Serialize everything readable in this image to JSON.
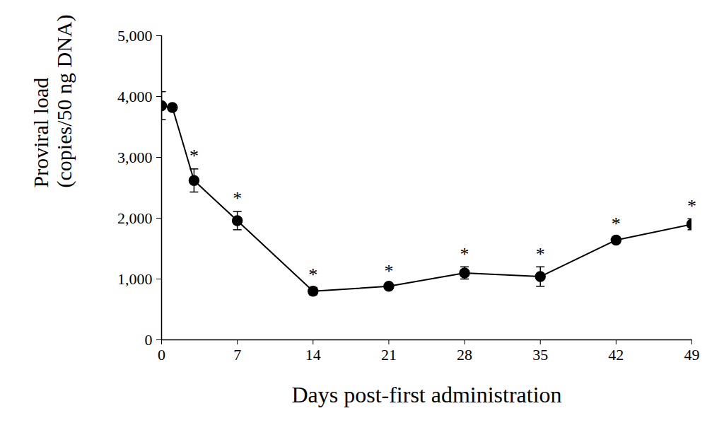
{
  "chart_data": {
    "type": "line",
    "x_label": "Days post-first administration",
    "y_label": "Proviral load\n(copies/50 ng DNA)",
    "x": [
      0,
      1,
      3,
      7,
      14,
      21,
      28,
      35,
      42,
      49
    ],
    "series": [
      {
        "name": "Proviral load",
        "color": "#000000",
        "marker": "circle",
        "line_style": "solid",
        "values": [
          3850,
          3820,
          2620,
          1960,
          800,
          880,
          1100,
          1040,
          1640,
          1900
        ],
        "error": [
          230,
          20,
          190,
          150,
          60,
          40,
          100,
          160,
          50,
          90
        ]
      }
    ],
    "annotations": [
      {
        "x": 3,
        "text": "*"
      },
      {
        "x": 7,
        "text": "*"
      },
      {
        "x": 14,
        "text": "*"
      },
      {
        "x": 21,
        "text": "*"
      },
      {
        "x": 28,
        "text": "*"
      },
      {
        "x": 35,
        "text": "*"
      },
      {
        "x": 42,
        "text": "*"
      },
      {
        "x": 49,
        "text": "*"
      }
    ],
    "xlim": [
      0,
      49
    ],
    "xticks": [
      0,
      7,
      14,
      21,
      28,
      35,
      42,
      49
    ],
    "ylim": [
      0,
      5000
    ],
    "yticks": [
      0,
      {
        "value": 1000,
        "label": "1,000"
      },
      {
        "value": 2000,
        "label": "2,000"
      },
      {
        "value": 3000,
        "label": "3,000"
      },
      {
        "value": 4000,
        "label": "4,000"
      },
      {
        "value": 5000,
        "label": "5,000"
      }
    ],
    "grid": false
  }
}
